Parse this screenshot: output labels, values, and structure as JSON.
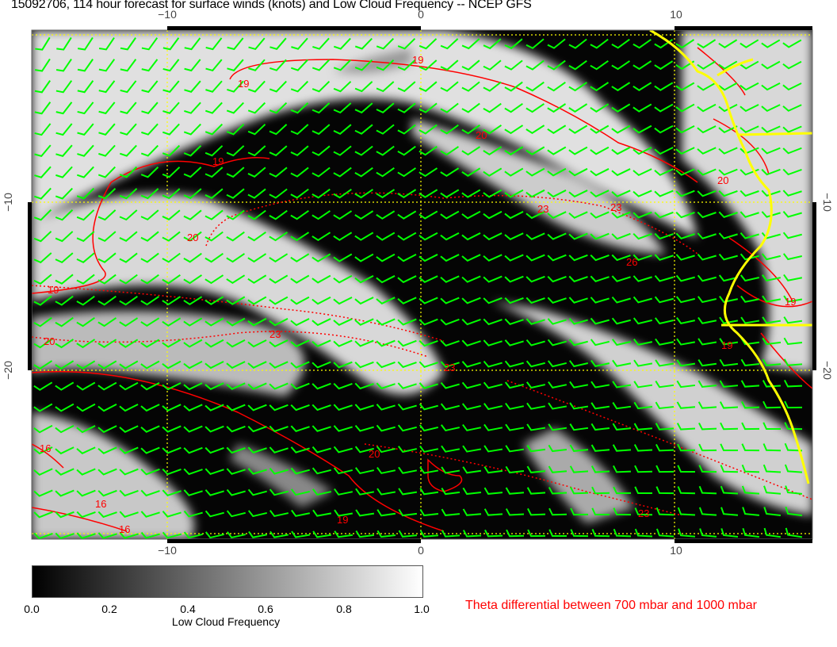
{
  "title": "15092706, 114 hour forecast for surface winds (knots) and Low Cloud Frequency -- NCEP GFS",
  "map": {
    "x_ticks": [
      "−10",
      "0",
      "10"
    ],
    "y_ticks": [
      "−10",
      "−20"
    ],
    "lon_range": [
      -15.5,
      15.5
    ],
    "lat_range": [
      -30,
      0.2
    ],
    "contour_labels": [
      "19",
      "19",
      "19",
      "19",
      "20",
      "20",
      "20",
      "20",
      "23",
      "23",
      "23",
      "23",
      "26",
      "19",
      "16",
      "16",
      "16",
      "19",
      "20",
      "23",
      "19"
    ],
    "colors": {
      "wind_barbs": "#00ff00",
      "contours": "#ff0000",
      "coastline": "#ffff00",
      "gridlines": "#ffff00"
    }
  },
  "colorbar": {
    "labels": [
      "0.0",
      "0.2",
      "0.4",
      "0.6",
      "0.8",
      "1.0"
    ],
    "title": "Low Cloud Frequency",
    "range": [
      0,
      1
    ]
  },
  "legend_text": "Theta differential between 700 mbar and 1000 mbar"
}
